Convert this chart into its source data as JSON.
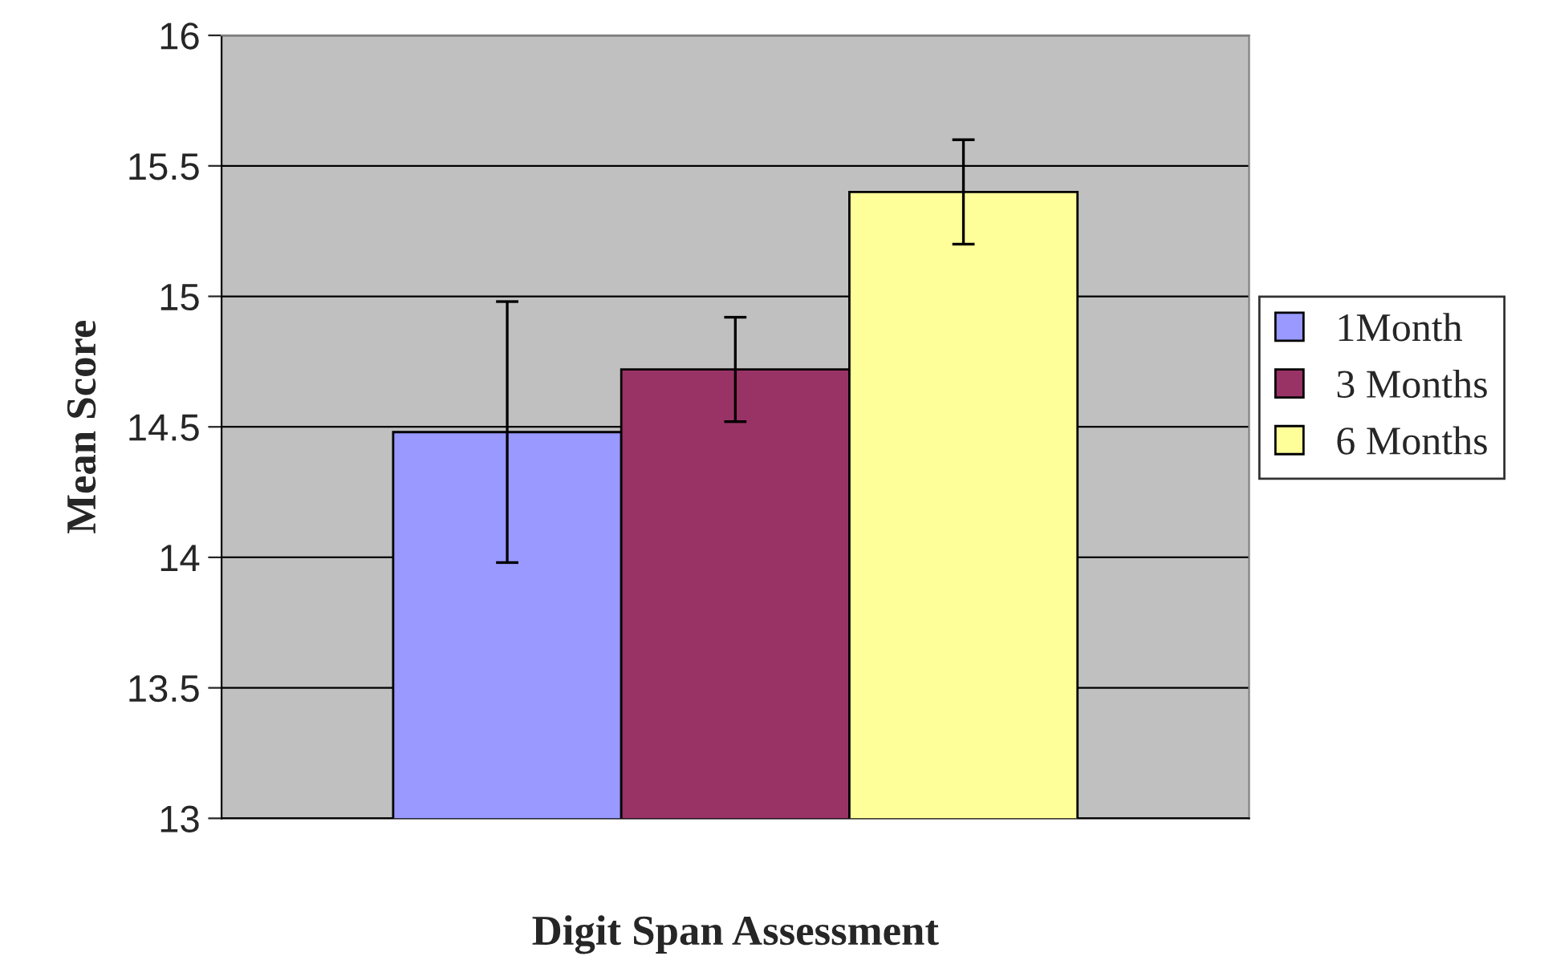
{
  "chart_data": {
    "type": "bar",
    "xlabel": "Digit Span Assessment",
    "ylabel": "Mean Score",
    "categories": [
      null
    ],
    "series": [
      {
        "name": "1Month",
        "color": "#9999ff",
        "values": [
          14.48
        ],
        "errors": [
          0.5
        ]
      },
      {
        "name": "3 Months",
        "color": "#993366",
        "values": [
          14.72
        ],
        "errors": [
          0.2
        ]
      },
      {
        "name": "6 Months",
        "color": "#ffff99",
        "values": [
          15.4
        ],
        "errors": [
          0.2
        ]
      }
    ],
    "ylim": [
      13,
      16
    ],
    "yticks": [
      13,
      13.5,
      14,
      14.5,
      15,
      15.5,
      16
    ],
    "grid": "y",
    "legend": "right"
  }
}
